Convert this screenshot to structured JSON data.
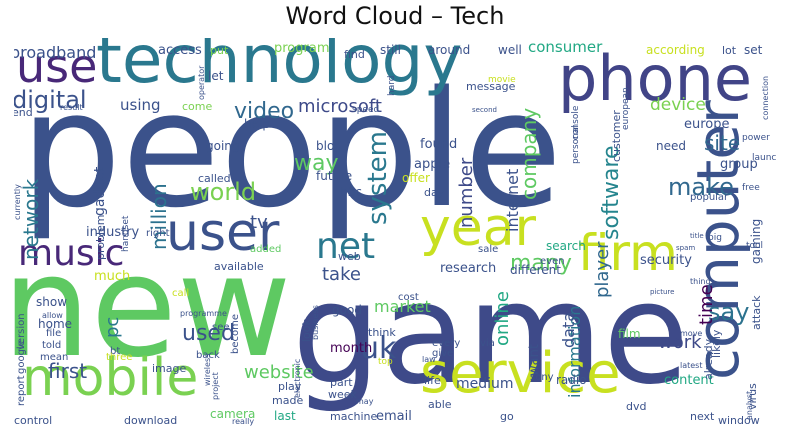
{
  "chart_data": {
    "type": "wordcloud",
    "title": "Word Cloud – Tech",
    "palette": "viridis",
    "background": "#ffffff",
    "words": [
      {
        "text": "people",
        "weight": 100,
        "color": "#3b528b"
      },
      {
        "text": "new",
        "weight": 90,
        "color": "#5ec962"
      },
      {
        "text": "game",
        "weight": 85,
        "color": "#3e4a89"
      },
      {
        "text": "technology",
        "weight": 55,
        "color": "#2a788e"
      },
      {
        "text": "phone",
        "weight": 48,
        "color": "#414487"
      },
      {
        "text": "computer",
        "weight": 46,
        "color": "#3b528b"
      },
      {
        "text": "mobile",
        "weight": 44,
        "color": "#7ad151"
      },
      {
        "text": "service",
        "weight": 44,
        "color": "#c8e020"
      },
      {
        "text": "year",
        "weight": 42,
        "color": "#c8e020"
      },
      {
        "text": "firm",
        "weight": 40,
        "color": "#c8e020"
      },
      {
        "text": "user",
        "weight": 38,
        "color": "#3b528b"
      },
      {
        "text": "use",
        "weight": 36,
        "color": "#482878"
      },
      {
        "text": "music",
        "weight": 30,
        "color": "#482878"
      },
      {
        "text": "net",
        "weight": 28,
        "color": "#2a788e"
      },
      {
        "text": "uk",
        "weight": 24,
        "color": "#3b528b"
      },
      {
        "text": "system",
        "weight": 22,
        "color": "#2a788e"
      },
      {
        "text": "say",
        "weight": 22,
        "color": "#2c728e"
      },
      {
        "text": "software",
        "weight": 20,
        "color": "#25858e"
      },
      {
        "text": "world",
        "weight": 20,
        "color": "#7ad151"
      },
      {
        "text": "make",
        "weight": 20,
        "color": "#31688e"
      },
      {
        "text": "video",
        "weight": 20,
        "color": "#31688e"
      },
      {
        "text": "digital",
        "weight": 20,
        "color": "#3b528b"
      },
      {
        "text": "used",
        "weight": 19,
        "color": "#3b528b"
      },
      {
        "text": "way",
        "weight": 18,
        "color": "#5ec962"
      },
      {
        "text": "many",
        "weight": 18,
        "color": "#5ec962"
      },
      {
        "text": "company",
        "weight": 18,
        "color": "#5ec962"
      },
      {
        "text": "million",
        "weight": 18,
        "color": "#2c728e"
      },
      {
        "text": "network",
        "weight": 18,
        "color": "#2a788e"
      },
      {
        "text": "player",
        "weight": 16,
        "color": "#31688e"
      },
      {
        "text": "site",
        "weight": 16,
        "color": "#31688e"
      },
      {
        "text": "first",
        "weight": 16,
        "color": "#3b528b"
      },
      {
        "text": "online",
        "weight": 16,
        "color": "#22a884"
      },
      {
        "text": "website",
        "weight": 16,
        "color": "#5ec962"
      },
      {
        "text": "microsoft",
        "weight": 15,
        "color": "#3e4a89"
      },
      {
        "text": "number",
        "weight": 15,
        "color": "#3e4a89"
      },
      {
        "text": "time",
        "weight": 15,
        "color": "#440154"
      },
      {
        "text": "work",
        "weight": 15,
        "color": "#3e4a89"
      },
      {
        "text": "tv",
        "weight": 15,
        "color": "#3b528b"
      },
      {
        "text": "take",
        "weight": 15,
        "color": "#3b528b"
      },
      {
        "text": "device",
        "weight": 14,
        "color": "#7ad151"
      },
      {
        "text": "internet",
        "weight": 14,
        "color": "#3b528b"
      },
      {
        "text": "broadband",
        "weight": 14,
        "color": "#3b528b"
      },
      {
        "text": "pc",
        "weight": 14,
        "color": "#2a788e"
      },
      {
        "text": "information",
        "weight": 13,
        "color": "#2a788e"
      },
      {
        "text": "market",
        "weight": 13,
        "color": "#5ec962"
      },
      {
        "text": "using",
        "weight": 13,
        "color": "#3b528b"
      },
      {
        "text": "data",
        "weight": 13,
        "color": "#3b528b"
      },
      {
        "text": "consumer",
        "weight": 13,
        "color": "#22a884"
      },
      {
        "text": "program",
        "weight": 12,
        "color": "#7ad151"
      },
      {
        "text": "gadget",
        "weight": 12,
        "color": "#3b528b"
      },
      {
        "text": "medium",
        "weight": 12,
        "color": "#3b528b"
      },
      {
        "text": "month",
        "weight": 11,
        "color": "#440154"
      },
      {
        "text": "want",
        "weight": 11,
        "color": "#3b528b"
      },
      {
        "text": "security",
        "weight": 11,
        "color": "#3b528b"
      },
      {
        "text": "europe",
        "weight": 11,
        "color": "#3b528b"
      },
      {
        "text": "group",
        "weight": 11,
        "color": "#3b528b"
      },
      {
        "text": "content",
        "weight": 11,
        "color": "#22a884"
      },
      {
        "text": "access",
        "weight": 11,
        "color": "#3b528b"
      },
      {
        "text": "apple",
        "weight": 11,
        "color": "#3b528b"
      },
      {
        "text": "found",
        "weight": 11,
        "color": "#3b528b"
      },
      {
        "text": "industry",
        "weight": 11,
        "color": "#3b528b"
      },
      {
        "text": "much",
        "weight": 11,
        "color": "#c8e020"
      },
      {
        "text": "email",
        "weight": 11,
        "color": "#3b528b"
      },
      {
        "text": "research",
        "weight": 11,
        "color": "#3b528b"
      },
      {
        "text": "different",
        "weight": 10,
        "color": "#3b528b"
      },
      {
        "text": "still",
        "weight": 10,
        "color": "#3b528b"
      },
      {
        "text": "around",
        "weight": 10,
        "color": "#3b528b"
      },
      {
        "text": "well",
        "weight": 10,
        "color": "#3b528b"
      },
      {
        "text": "blog",
        "weight": 10,
        "color": "#3b528b"
      },
      {
        "text": "going",
        "weight": 10,
        "color": "#3b528b"
      },
      {
        "text": "help",
        "weight": 10,
        "color": "#3b528b"
      },
      {
        "text": "need",
        "weight": 10,
        "color": "#3b528b"
      },
      {
        "text": "gaming",
        "weight": 10,
        "color": "#3b528b"
      },
      {
        "text": "radio",
        "weight": 10,
        "color": "#3b528b"
      },
      {
        "text": "according",
        "weight": 10,
        "color": "#c8e020"
      },
      {
        "text": "last",
        "weight": 10,
        "color": "#22a884"
      },
      {
        "text": "home",
        "weight": 10,
        "color": "#3b528b"
      },
      {
        "text": "show",
        "weight": 10,
        "color": "#3b528b"
      },
      {
        "text": "film",
        "weight": 10,
        "color": "#5ec962"
      },
      {
        "text": "good",
        "weight": 10,
        "color": "#3b528b"
      },
      {
        "text": "search",
        "weight": 10,
        "color": "#22a884"
      },
      {
        "text": "bbc",
        "weight": 10,
        "color": "#3b528b"
      },
      {
        "text": "future",
        "weight": 10,
        "color": "#3b528b"
      },
      {
        "text": "set",
        "weight": 10,
        "color": "#3b528b"
      },
      {
        "text": "lot",
        "weight": 10,
        "color": "#3b528b"
      },
      {
        "text": "message",
        "weight": 9,
        "color": "#3b528b"
      },
      {
        "text": "find",
        "weight": 9,
        "color": "#3b528b"
      },
      {
        "text": "put",
        "weight": 9,
        "color": "#7ad151"
      },
      {
        "text": "let",
        "weight": 9,
        "color": "#3b528b"
      },
      {
        "text": "come",
        "weight": 9,
        "color": "#7ad151"
      },
      {
        "text": "end",
        "weight": 9,
        "color": "#3b528b"
      },
      {
        "text": "problem",
        "weight": 9,
        "color": "#3b528b"
      },
      {
        "text": "image",
        "weight": 9,
        "color": "#3b528b"
      },
      {
        "text": "available",
        "weight": 9,
        "color": "#3b528b"
      },
      {
        "text": "day",
        "weight": 9,
        "color": "#3b528b"
      },
      {
        "text": "offer",
        "weight": 9,
        "color": "#c8e020"
      },
      {
        "text": "play",
        "weight": 9,
        "color": "#3b528b"
      },
      {
        "text": "made",
        "weight": 9,
        "color": "#3b528b"
      },
      {
        "text": "look",
        "weight": 9,
        "color": "#3b528b"
      },
      {
        "text": "think",
        "weight": 9,
        "color": "#3b528b"
      },
      {
        "text": "part",
        "weight": 9,
        "color": "#3b528b"
      },
      {
        "text": "week",
        "weight": 9,
        "color": "#3b528b"
      },
      {
        "text": "control",
        "weight": 9,
        "color": "#3b528b"
      },
      {
        "text": "download",
        "weight": 9,
        "color": "#3b528b"
      },
      {
        "text": "camera",
        "weight": 9,
        "color": "#5ec962"
      },
      {
        "text": "machine",
        "weight": 9,
        "color": "#3b528b"
      },
      {
        "text": "able",
        "weight": 9,
        "color": "#3b528b"
      },
      {
        "text": "life",
        "weight": 9,
        "color": "#3b528b"
      },
      {
        "text": "dvd",
        "weight": 9,
        "color": "#3b528b"
      },
      {
        "text": "next",
        "weight": 9,
        "color": "#3b528b"
      },
      {
        "text": "window",
        "weight": 9,
        "color": "#3b528b"
      },
      {
        "text": "likely",
        "weight": 9,
        "color": "#3b528b"
      },
      {
        "text": "already",
        "weight": 9,
        "color": "#3b528b"
      },
      {
        "text": "virus",
        "weight": 9,
        "color": "#3b528b"
      },
      {
        "text": "attack",
        "weight": 9,
        "color": "#3b528b"
      },
      {
        "text": "customer",
        "weight": 9,
        "color": "#3b528b"
      },
      {
        "text": "called",
        "weight": 9,
        "color": "#3b528b"
      },
      {
        "text": "web",
        "weight": 9,
        "color": "#3b528b"
      },
      {
        "text": "go",
        "weight": 9,
        "color": "#3b528b"
      },
      {
        "text": "sony",
        "weight": 8,
        "color": "#3b528b"
      },
      {
        "text": "told",
        "weight": 8,
        "color": "#3b528b"
      },
      {
        "text": "mean",
        "weight": 8,
        "color": "#3b528b"
      },
      {
        "text": "file",
        "weight": 8,
        "color": "#3b528b"
      },
      {
        "text": "right",
        "weight": 8,
        "color": "#3b528b"
      },
      {
        "text": "added",
        "weight": 8,
        "color": "#5ec962"
      },
      {
        "text": "even",
        "weight": 8,
        "color": "#3b528b"
      },
      {
        "text": "sale",
        "weight": 8,
        "color": "#3b528b"
      },
      {
        "text": "cost",
        "weight": 8,
        "color": "#3b528b"
      },
      {
        "text": "popular",
        "weight": 8,
        "color": "#3b528b"
      },
      {
        "text": "launch",
        "weight": 8,
        "color": "#3b528b"
      },
      {
        "text": "free",
        "weight": 8,
        "color": "#3b528b"
      },
      {
        "text": "every",
        "weight": 8,
        "color": "#3b528b"
      },
      {
        "text": "give",
        "weight": 8,
        "color": "#3b528b"
      },
      {
        "text": "via",
        "weight": 8,
        "color": "#3b528b"
      },
      {
        "text": "call",
        "weight": 8,
        "color": "#c8e020"
      },
      {
        "text": "see",
        "weight": 8,
        "color": "#3b528b"
      },
      {
        "text": "back",
        "weight": 8,
        "color": "#3b528b"
      },
      {
        "text": "become",
        "weight": 8,
        "color": "#3b528b"
      },
      {
        "text": "handset",
        "weight": 8,
        "color": "#3b528b"
      },
      {
        "text": "bt",
        "weight": 8,
        "color": "#3b528b"
      },
      {
        "text": "three",
        "weight": 8,
        "color": "#c8e020"
      },
      {
        "text": "report",
        "weight": 8,
        "color": "#3b528b"
      },
      {
        "text": "version",
        "weight": 8,
        "color": "#3b528b"
      },
      {
        "text": "google",
        "weight": 8,
        "color": "#3b528b"
      },
      {
        "text": "console",
        "weight": 8,
        "color": "#3b528b"
      },
      {
        "text": "personal",
        "weight": 7,
        "color": "#3b528b"
      },
      {
        "text": "european",
        "weight": 7,
        "color": "#3b528b"
      },
      {
        "text": "power",
        "weight": 7,
        "color": "#3b528b"
      },
      {
        "text": "big",
        "weight": 7,
        "color": "#3b528b"
      },
      {
        "text": "tool",
        "weight": 7,
        "color": "#3b528b"
      },
      {
        "text": "result",
        "weight": 7,
        "color": "#3b528b"
      },
      {
        "text": "currently",
        "weight": 7,
        "color": "#3b528b"
      },
      {
        "text": "operator",
        "weight": 7,
        "color": "#3b528b"
      },
      {
        "text": "programme",
        "weight": 7,
        "color": "#3b528b"
      },
      {
        "text": "project",
        "weight": 7,
        "color": "#3b528b"
      },
      {
        "text": "electronic",
        "weight": 7,
        "color": "#3b528b"
      },
      {
        "text": "business",
        "weight": 7,
        "color": "#3b528b"
      },
      {
        "text": "wireless",
        "weight": 7,
        "color": "#3b528b"
      },
      {
        "text": "movie",
        "weight": 7,
        "color": "#c8e020"
      },
      {
        "text": "speed",
        "weight": 7,
        "color": "#3b528b"
      },
      {
        "text": "hard",
        "weight": 7,
        "color": "#3b528b"
      },
      {
        "text": "connection",
        "weight": 7,
        "color": "#3b528b"
      },
      {
        "text": "latest",
        "weight": 7,
        "color": "#3b528b"
      },
      {
        "text": "analyst",
        "weight": 7,
        "color": "#3b528b"
      },
      {
        "text": "thing",
        "weight": 7,
        "color": "#3b528b"
      },
      {
        "text": "picture",
        "weight": 7,
        "color": "#3b528b"
      },
      {
        "text": "spam",
        "weight": 7,
        "color": "#3b528b"
      },
      {
        "text": "title",
        "weight": 7,
        "color": "#3b528b"
      },
      {
        "text": "second",
        "weight": 7,
        "color": "#3b528b"
      },
      {
        "text": "move",
        "weight": 7,
        "color": "#3b528b"
      },
      {
        "text": "top",
        "weight": 7,
        "color": "#c8e020"
      },
      {
        "text": "law",
        "weight": 7,
        "color": "#3b528b"
      },
      {
        "text": "really",
        "weight": 7,
        "color": "#3b528b"
      },
      {
        "text": "allow",
        "weight": 7,
        "color": "#3b528b"
      },
      {
        "text": "may",
        "weight": 7,
        "color": "#3b528b"
      }
    ]
  }
}
